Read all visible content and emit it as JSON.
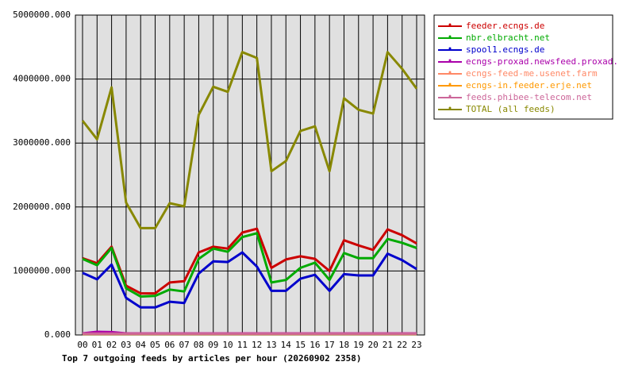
{
  "chart_data": {
    "type": "line",
    "title": "Top 7 outgoing feeds by articles per hour (20260902 2358)",
    "categories": [
      "00",
      "01",
      "02",
      "03",
      "04",
      "05",
      "06",
      "07",
      "08",
      "09",
      "10",
      "11",
      "12",
      "13",
      "14",
      "15",
      "16",
      "17",
      "18",
      "19",
      "20",
      "21",
      "22",
      "23"
    ],
    "ylim": [
      0,
      5000000
    ],
    "yticks": [
      {
        "value": 0,
        "label": "0.000"
      },
      {
        "value": 1000000,
        "label": "1000000.000"
      },
      {
        "value": 2000000,
        "label": "2000000.000"
      },
      {
        "value": 3000000,
        "label": "3000000.000"
      },
      {
        "value": 4000000,
        "label": "4000000.000"
      },
      {
        "value": 5000000,
        "label": "5000000.000"
      }
    ],
    "grid": true,
    "legend": "right",
    "series": [
      {
        "name": "feeder.ecngs.de",
        "color": "#cc0000",
        "values": [
          1200000,
          1120000,
          1380000,
          770000,
          650000,
          650000,
          820000,
          840000,
          1290000,
          1380000,
          1350000,
          1600000,
          1660000,
          1050000,
          1180000,
          1230000,
          1190000,
          1000000,
          1480000,
          1400000,
          1330000,
          1650000,
          1560000,
          1430000
        ]
      },
      {
        "name": "nbr.elbracht.net",
        "color": "#00aa00",
        "values": [
          1190000,
          1090000,
          1360000,
          730000,
          600000,
          610000,
          710000,
          680000,
          1190000,
          1350000,
          1300000,
          1530000,
          1590000,
          820000,
          860000,
          1050000,
          1130000,
          860000,
          1280000,
          1200000,
          1200000,
          1500000,
          1440000,
          1360000
        ]
      },
      {
        "name": "spool1.ecngs.de",
        "color": "#0000cc",
        "values": [
          970000,
          870000,
          1100000,
          580000,
          430000,
          430000,
          520000,
          500000,
          960000,
          1150000,
          1140000,
          1290000,
          1070000,
          690000,
          690000,
          880000,
          940000,
          690000,
          950000,
          930000,
          930000,
          1270000,
          1170000,
          1030000
        ]
      },
      {
        "name": "ecngs-proxad.newsfeed.proxad.net",
        "color": "#aa00aa",
        "values": [
          25000,
          50000,
          45000,
          25000,
          25000,
          25000,
          25000,
          25000,
          25000,
          25000,
          25000,
          25000,
          25000,
          25000,
          25000,
          25000,
          25000,
          25000,
          25000,
          25000,
          25000,
          25000,
          25000,
          25000
        ]
      },
      {
        "name": "ecngs-feed-me.usenet.farm",
        "color": "#ff8866",
        "values": [
          20000,
          20000,
          20000,
          20000,
          20000,
          20000,
          20000,
          20000,
          20000,
          20000,
          20000,
          20000,
          20000,
          20000,
          20000,
          20000,
          20000,
          20000,
          20000,
          20000,
          20000,
          20000,
          20000,
          20000
        ]
      },
      {
        "name": "ecngs-in.feeder.erje.net",
        "color": "#ff9900",
        "values": [
          15000,
          15000,
          15000,
          15000,
          15000,
          15000,
          15000,
          15000,
          15000,
          15000,
          15000,
          15000,
          15000,
          15000,
          15000,
          15000,
          15000,
          15000,
          15000,
          15000,
          15000,
          15000,
          15000,
          15000
        ]
      },
      {
        "name": "feeds.phibee-telecom.net",
        "color": "#cc6699",
        "values": [
          20000,
          20000,
          20000,
          20000,
          20000,
          20000,
          20000,
          20000,
          20000,
          20000,
          20000,
          20000,
          20000,
          20000,
          20000,
          20000,
          20000,
          20000,
          20000,
          20000,
          20000,
          20000,
          20000,
          20000
        ]
      },
      {
        "name": "TOTAL (all feeds)",
        "color": "#888800",
        "values": [
          3350000,
          3060000,
          3870000,
          2070000,
          1670000,
          1670000,
          2060000,
          2010000,
          3440000,
          3880000,
          3800000,
          4420000,
          4330000,
          2560000,
          2720000,
          3190000,
          3260000,
          2560000,
          3700000,
          3520000,
          3460000,
          4420000,
          4160000,
          3850000
        ]
      }
    ]
  }
}
